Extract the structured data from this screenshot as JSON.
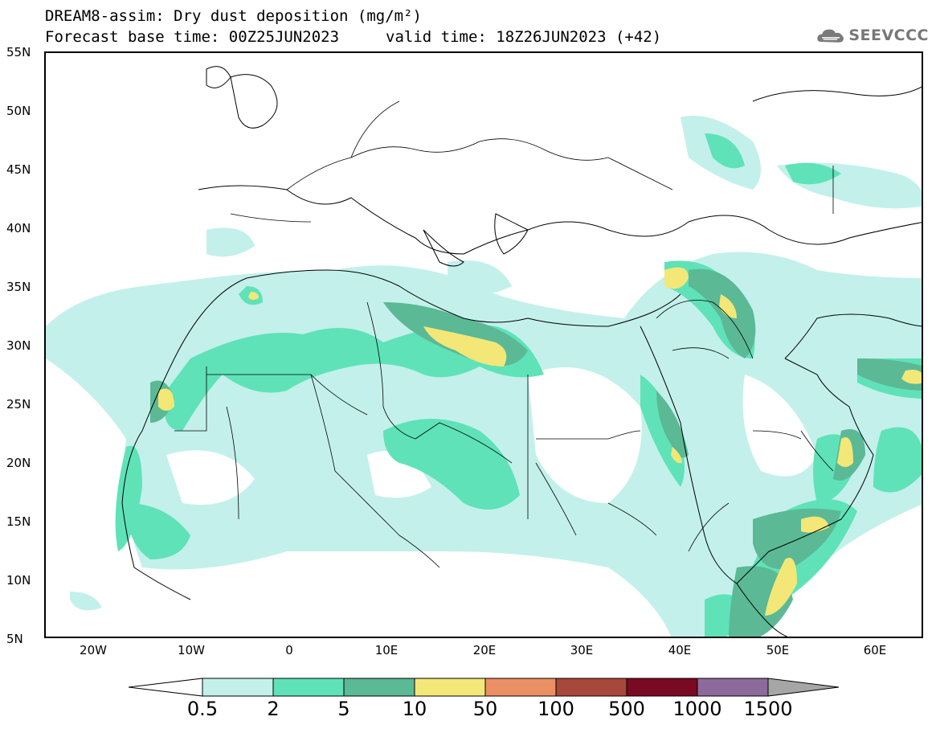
{
  "title": {
    "line1": "DREAM8-assim: Dry dust deposition (mg/m²)",
    "line2": "Forecast base time: 00Z25JUN2023",
    "valid": "valid time: 18Z26JUN2023 (+42)"
  },
  "logo": {
    "icon": "cloud-icon",
    "text": "SEEVCCC"
  },
  "axes": {
    "lat_labels": [
      "55N",
      "50N",
      "45N",
      "40N",
      "35N",
      "30N",
      "25N",
      "20N",
      "15N",
      "10N",
      "5N"
    ],
    "lon_labels": [
      "20W",
      "10W",
      "0",
      "10E",
      "20E",
      "30E",
      "40E",
      "50E",
      "60E"
    ],
    "lat_range": [
      5,
      55
    ],
    "lon_range": [
      -25,
      65
    ]
  },
  "legend": {
    "labels": [
      "0.5",
      "2",
      "5",
      "10",
      "50",
      "100",
      "500",
      "1000",
      "1500"
    ],
    "colors": [
      "#c3f0eb",
      "#5fe2b8",
      "#5bb995",
      "#f3e778",
      "#ea9064",
      "#a8483a",
      "#7a0a24",
      "#8e6a9c",
      "#a6a6a6"
    ]
  }
}
